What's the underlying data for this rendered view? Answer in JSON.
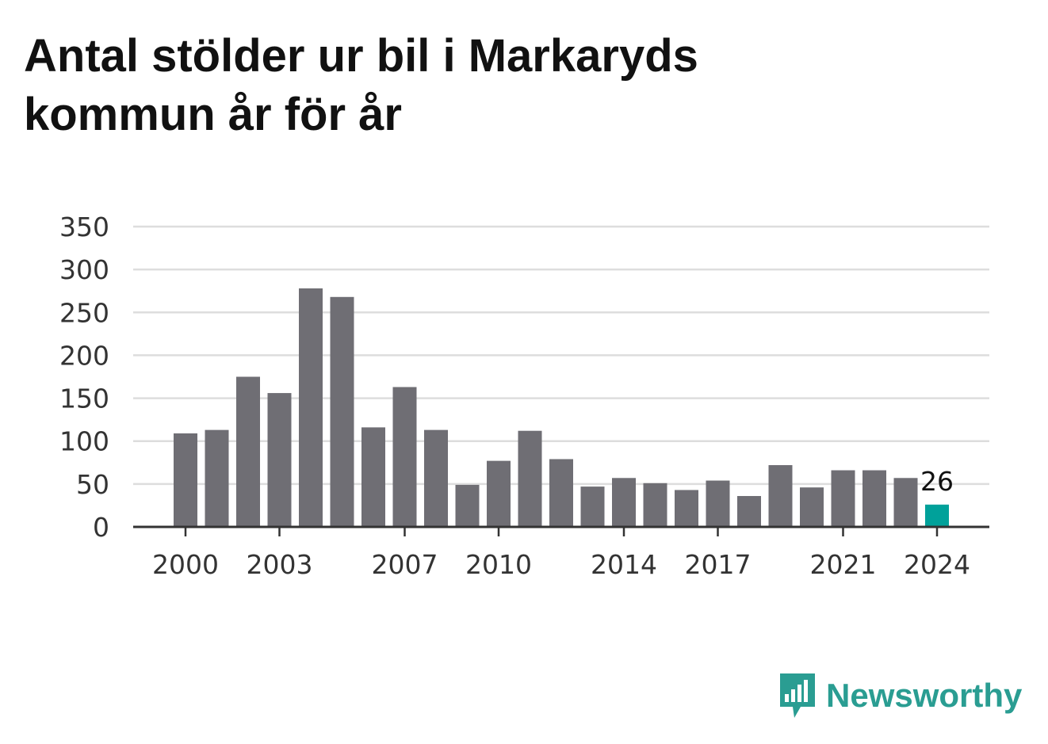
{
  "title": "Antal stölder ur bil i Markaryds kommun år för år",
  "brand": {
    "name": "Newsworthy",
    "color": "#2a9d92",
    "icon": "bar-chart-speech-bubble-icon"
  },
  "colors": {
    "bar": "#6f6e74",
    "highlight": "#00a19a",
    "grid": "#dddddd",
    "axis": "#333333"
  },
  "chart_data": {
    "type": "bar",
    "title": "Antal stölder ur bil i Markaryds kommun år för år",
    "xlabel": "",
    "ylabel": "",
    "categories": [
      "2000",
      "2001",
      "2002",
      "2003",
      "2004",
      "2005",
      "2006",
      "2007",
      "2008",
      "2009",
      "2010",
      "2011",
      "2012",
      "2013",
      "2014",
      "2015",
      "2016",
      "2017",
      "2018",
      "2019",
      "2020",
      "2021",
      "2022",
      "2023",
      "2024"
    ],
    "values": [
      109,
      113,
      175,
      156,
      278,
      268,
      116,
      163,
      113,
      49,
      77,
      112,
      79,
      47,
      57,
      51,
      43,
      54,
      36,
      72,
      46,
      66,
      66,
      57,
      26
    ],
    "x_tick_labels": [
      "2000",
      "2003",
      "2007",
      "2010",
      "2014",
      "2017",
      "2021",
      "2024"
    ],
    "y_ticks": [
      0,
      50,
      100,
      150,
      200,
      250,
      300,
      350
    ],
    "ylim": [
      0,
      350
    ],
    "grid": true,
    "highlight": {
      "category": "2024",
      "label": "26"
    }
  }
}
